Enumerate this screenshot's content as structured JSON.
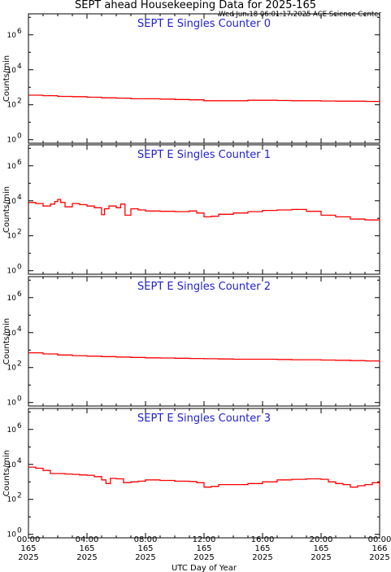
{
  "header": {
    "title": "SEPT ahead Housekeeping Data for 2025-165",
    "timestamp": "Wed Jun 18 06:01:17 2025 ACE Science Center"
  },
  "chart_data": {
    "type": "line",
    "xlabel": "UTC Day of Year",
    "x_ticks": [
      {
        "hour": 0,
        "time": "00:00",
        "day": "165",
        "year": "2025"
      },
      {
        "hour": 4,
        "time": "04:00",
        "day": "165",
        "year": "2025"
      },
      {
        "hour": 8,
        "time": "08:00",
        "day": "165",
        "year": "2025"
      },
      {
        "hour": 12,
        "time": "12:00",
        "day": "165",
        "year": "2025"
      },
      {
        "hour": 16,
        "time": "16:00",
        "day": "165",
        "year": "2025"
      },
      {
        "hour": 20,
        "time": "20:00",
        "day": "165",
        "year": "2025"
      },
      {
        "hour": 24,
        "time": "00:00",
        "day": "166",
        "year": "2025"
      }
    ],
    "xlim_hours": [
      0,
      24
    ],
    "ylim_log10": [
      -0.2,
      7.2
    ],
    "y_scale": "log",
    "y_tick_exponents": [
      0,
      2,
      4,
      6
    ],
    "y_tick_labels": [
      "10",
      "10",
      "10",
      "10"
    ],
    "line_color": "#ff0000",
    "title_color": "#1f1fd0",
    "panels": [
      {
        "title": "SEPT E Singles Counter 0",
        "ylabel": "Counts/min",
        "series": [
          {
            "x": [
              0,
              1,
              2,
              3,
              4,
              5,
              6,
              7,
              8,
              9,
              10,
              11,
              12,
              13,
              14,
              15,
              16,
              17,
              18,
              19,
              20,
              21,
              22,
              23,
              24
            ],
            "y": [
              350,
              330,
              300,
              290,
              270,
              250,
              240,
              220,
              220,
              210,
              200,
              190,
              170,
              170,
              170,
              180,
              180,
              175,
              170,
              170,
              165,
              160,
              160,
              155,
              150
            ]
          }
        ]
      },
      {
        "title": "SEPT E Singles Counter 1",
        "ylabel": "Counts/min",
        "series": [
          {
            "x": [
              0,
              0.5,
              1,
              1.5,
              1.8,
              2,
              2.2,
              2.5,
              3,
              3.5,
              4,
              4.5,
              5,
              5.2,
              5.5,
              6,
              6.3,
              6.6,
              7,
              7.5,
              8,
              9,
              10,
              11,
              11.5,
              12,
              12.5,
              13,
              14,
              15,
              16,
              17,
              18,
              19,
              20,
              21,
              22,
              23,
              24
            ],
            "y": [
              8000,
              7000,
              5000,
              6500,
              9000,
              12000,
              8000,
              4500,
              7000,
              6000,
              5000,
              4000,
              1600,
              3500,
              5000,
              4000,
              6500,
              1500,
              3500,
              3000,
              2600,
              2500,
              2400,
              2600,
              2000,
              1200,
              1300,
              1700,
              2000,
              2400,
              2800,
              3000,
              3200,
              2500,
              1500,
              1200,
              900,
              800,
              750
            ]
          }
        ]
      },
      {
        "title": "SEPT E Singles Counter 2",
        "ylabel": "Counts/min",
        "series": [
          {
            "x": [
              0,
              1,
              2,
              3,
              4,
              5,
              6,
              7,
              8,
              9,
              10,
              11,
              12,
              13,
              14,
              15,
              16,
              17,
              18,
              19,
              20,
              21,
              22,
              23,
              24
            ],
            "y": [
              700,
              600,
              520,
              480,
              450,
              420,
              400,
              380,
              360,
              350,
              340,
              330,
              320,
              310,
              300,
              300,
              300,
              290,
              280,
              280,
              270,
              260,
              250,
              240,
              230
            ]
          }
        ]
      },
      {
        "title": "SEPT E Singles Counter 3",
        "ylabel": "Counts/min",
        "series": [
          {
            "x": [
              0,
              0.5,
              1,
              1.5,
              2,
              2.5,
              3,
              3.5,
              4,
              4.5,
              5,
              5.3,
              5.6,
              6,
              6.5,
              7,
              7.5,
              8,
              9,
              10,
              11,
              11.5,
              12,
              12.5,
              13,
              14,
              15,
              16,
              17,
              18,
              19,
              20,
              20.5,
              21,
              21.5,
              22,
              22.5,
              23,
              23.5,
              24
            ],
            "y": [
              7000,
              6000,
              4500,
              3000,
              3000,
              2800,
              2700,
              2500,
              2400,
              2000,
              1300,
              800,
              1600,
              1500,
              900,
              1000,
              1100,
              1300,
              1200,
              1100,
              1050,
              900,
              500,
              550,
              700,
              700,
              800,
              1000,
              1300,
              1400,
              1500,
              1400,
              1000,
              800,
              700,
              500,
              600,
              700,
              900,
              500
            ]
          }
        ]
      }
    ]
  }
}
